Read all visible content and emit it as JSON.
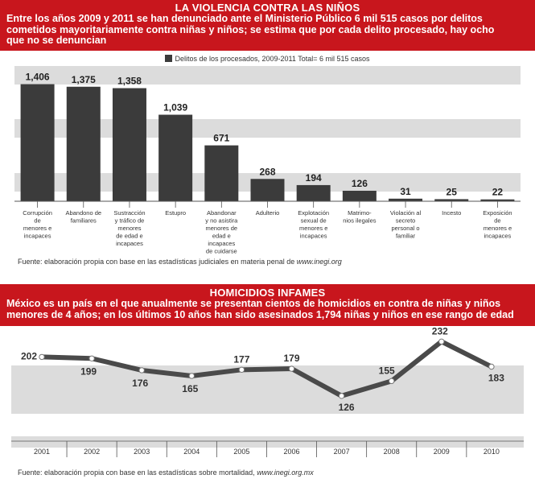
{
  "header1": {
    "title": "LA VIOLENCIA CONTRA LAS NIÑOS",
    "subtitle_lines": [
      "Entre los años 2009 y 2011 se han denunciado ante el Ministerio Público 6 mil 515 casos por delitos",
      "cometidos mayoritariamente contra niñas y niños; se estima que por cada delito procesado, hay ocho",
      "que no se denuncian"
    ]
  },
  "legend1": "Delitos de los procesados, 2009-2011 Total= 6 mil 515 casos",
  "source1": {
    "text": "Fuente: elaboración propia con base en las estadísticas judiciales en materia penal de ",
    "url": "www.inegi.org"
  },
  "header2": {
    "title": "HOMICIDIOS INFAMES",
    "subtitle_lines": [
      "México es un país en el que anualmente se presentan cientos de homicidios en contra de niñas y niños",
      "menores de 4 años; en los últimos 10 años han sido asesinados 1,794 niñas y niños en ese rango de edad"
    ]
  },
  "source2": {
    "text": "Fuente: elaboración propia con base en las estadísticas sobre mortalidad, ",
    "url": "www.inegi.org.mx"
  },
  "colors": {
    "banner": "#c8161d",
    "bar": "#3b3b3b",
    "band": "#dcdcdc",
    "line": "#4a4a4a"
  },
  "chart_data": [
    {
      "type": "bar",
      "legend": "Delitos de los procesados, 2009-2011 Total= 6 mil 515 casos",
      "categories": [
        [
          "Corrupción",
          "de",
          "menores e",
          "incapaces"
        ],
        [
          "Abandono de",
          "familiares"
        ],
        [
          "Sustracción",
          "y tráfico de",
          "menores",
          "de edad e",
          "incapaces"
        ],
        [
          "Estupro"
        ],
        [
          "Abandonar",
          "y no asistira",
          "menores de",
          "edad e",
          "incapaces",
          "de cuidarse"
        ],
        [
          "Adulterio"
        ],
        [
          "Explotación",
          "sexual de",
          "menores e",
          "incapaces"
        ],
        [
          "Matrimo-",
          "nios ilegales"
        ],
        [
          "Violación al",
          "secreto",
          "personal o",
          "familiar"
        ],
        [
          "Incesto"
        ],
        [
          "Exposición",
          "de",
          "menores e",
          "incapaces"
        ]
      ],
      "values": [
        1406,
        1375,
        1358,
        1039,
        671,
        268,
        194,
        126,
        31,
        25,
        22
      ],
      "value_labels": [
        "1,406",
        "1,375",
        "1,358",
        "1,039",
        "671",
        "268",
        "194",
        "126",
        "31",
        "25",
        "22"
      ],
      "ylim": [
        0,
        1450
      ]
    },
    {
      "type": "line",
      "x": [
        "2001",
        "2002",
        "2003",
        "2004",
        "2005",
        "2006",
        "2007",
        "2008",
        "2009",
        "2010"
      ],
      "values": [
        202,
        199,
        176,
        165,
        177,
        179,
        126,
        155,
        232,
        183
      ],
      "ylim": [
        110,
        245
      ]
    }
  ]
}
